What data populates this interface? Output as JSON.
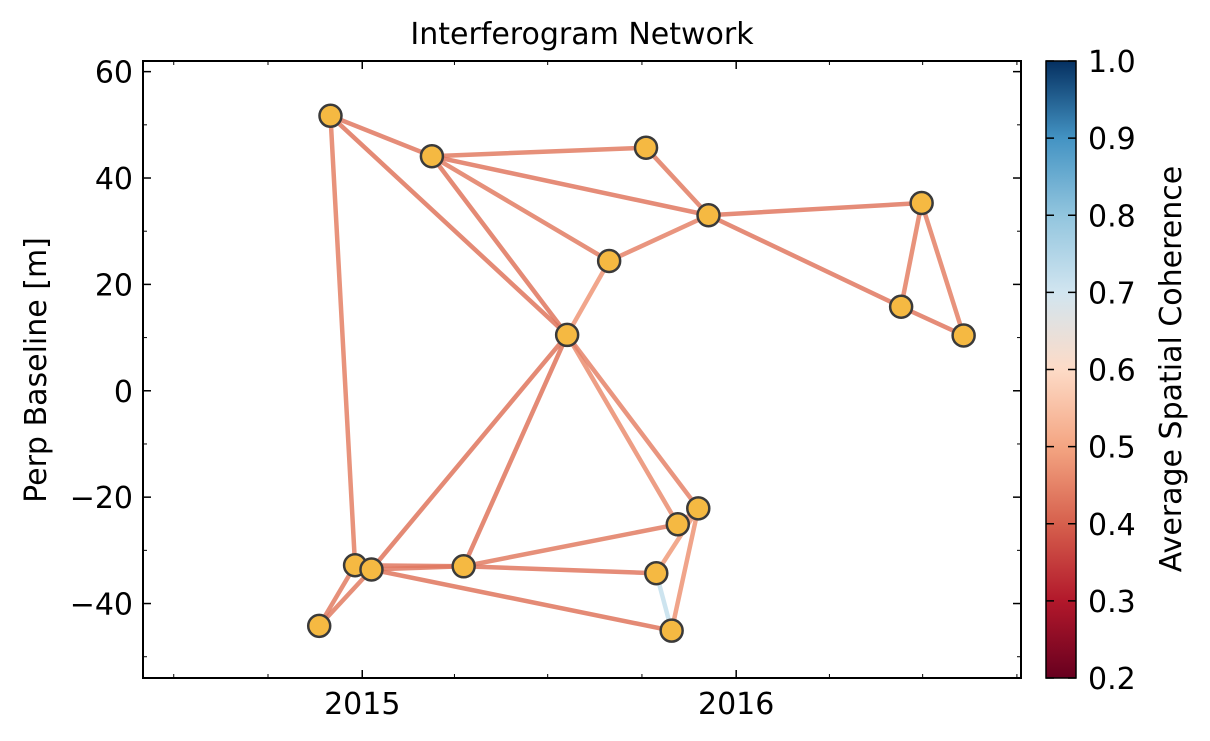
{
  "chart_data": {
    "type": "network",
    "title": "Interferogram Network",
    "xlabel": "",
    "ylabel": "Perp Baseline [m]",
    "x_ticks": [
      "2015",
      "2016"
    ],
    "y_ticks": [
      "−40",
      "−20",
      "0",
      "20",
      "40",
      "60"
    ],
    "xlim": [
      "2014-06-01",
      "2016-10-05"
    ],
    "ylim": [
      -54,
      62
    ],
    "colorbar": {
      "label": "Average Spatial Coherence",
      "range": [
        0.2,
        1.0
      ],
      "ticks": [
        "0.2",
        "0.3",
        "0.4",
        "0.5",
        "0.6",
        "0.7",
        "0.8",
        "0.9",
        "1.0"
      ],
      "colormap": "RdBu"
    },
    "node_color": "#f5b942",
    "nodes": [
      {
        "id": "a",
        "date": "2014-11-20",
        "bperp": -44.2
      },
      {
        "id": "b",
        "date": "2014-12-01",
        "bperp": 51.7
      },
      {
        "id": "c",
        "date": "2014-12-25",
        "bperp": -32.8
      },
      {
        "id": "d",
        "date": "2015-01-10",
        "bperp": -33.6
      },
      {
        "id": "e",
        "date": "2015-03-10",
        "bperp": 44.1
      },
      {
        "id": "f",
        "date": "2015-04-10",
        "bperp": -33.0
      },
      {
        "id": "g",
        "date": "2015-07-20",
        "bperp": 10.5
      },
      {
        "id": "h",
        "date": "2015-08-30",
        "bperp": 24.4
      },
      {
        "id": "i",
        "date": "2015-10-05",
        "bperp": 45.7
      },
      {
        "id": "j",
        "date": "2015-10-15",
        "bperp": -34.3
      },
      {
        "id": "k",
        "date": "2015-10-30",
        "bperp": -45.1
      },
      {
        "id": "l",
        "date": "2015-11-05",
        "bperp": -25.1
      },
      {
        "id": "m",
        "date": "2015-11-25",
        "bperp": -22.1
      },
      {
        "id": "n",
        "date": "2015-12-05",
        "bperp": 33.0
      },
      {
        "id": "o",
        "date": "2016-06-10",
        "bperp": 15.8
      },
      {
        "id": "p",
        "date": "2016-06-30",
        "bperp": 35.3
      },
      {
        "id": "q",
        "date": "2016-08-10",
        "bperp": 10.4
      }
    ],
    "edges": [
      {
        "from": "a",
        "to": "c",
        "coherence": 0.58
      },
      {
        "from": "a",
        "to": "d",
        "coherence": 0.58
      },
      {
        "from": "b",
        "to": "c",
        "coherence": 0.59
      },
      {
        "from": "b",
        "to": "e",
        "coherence": 0.57
      },
      {
        "from": "b",
        "to": "g",
        "coherence": 0.56
      },
      {
        "from": "c",
        "to": "f",
        "coherence": 0.57
      },
      {
        "from": "d",
        "to": "f",
        "coherence": 0.57
      },
      {
        "from": "d",
        "to": "k",
        "coherence": 0.56
      },
      {
        "from": "d",
        "to": "g",
        "coherence": 0.56
      },
      {
        "from": "e",
        "to": "i",
        "coherence": 0.58
      },
      {
        "from": "e",
        "to": "n",
        "coherence": 0.57
      },
      {
        "from": "e",
        "to": "h",
        "coherence": 0.58
      },
      {
        "from": "e",
        "to": "g",
        "coherence": 0.56
      },
      {
        "from": "f",
        "to": "l",
        "coherence": 0.58
      },
      {
        "from": "f",
        "to": "j",
        "coherence": 0.57
      },
      {
        "from": "f",
        "to": "g",
        "coherence": 0.56
      },
      {
        "from": "g",
        "to": "h",
        "coherence": 0.66
      },
      {
        "from": "g",
        "to": "l",
        "coherence": 0.63
      },
      {
        "from": "g",
        "to": "m",
        "coherence": 0.6
      },
      {
        "from": "h",
        "to": "n",
        "coherence": 0.6
      },
      {
        "from": "i",
        "to": "n",
        "coherence": 0.58
      },
      {
        "from": "j",
        "to": "k",
        "coherence": 0.76
      },
      {
        "from": "j",
        "to": "m",
        "coherence": 0.67
      },
      {
        "from": "k",
        "to": "m",
        "coherence": 0.65
      },
      {
        "from": "l",
        "to": "m",
        "coherence": 0.67
      },
      {
        "from": "n",
        "to": "p",
        "coherence": 0.57
      },
      {
        "from": "n",
        "to": "o",
        "coherence": 0.57
      },
      {
        "from": "o",
        "to": "p",
        "coherence": 0.59
      },
      {
        "from": "p",
        "to": "q",
        "coherence": 0.59
      },
      {
        "from": "o",
        "to": "q",
        "coherence": 0.57
      }
    ]
  }
}
